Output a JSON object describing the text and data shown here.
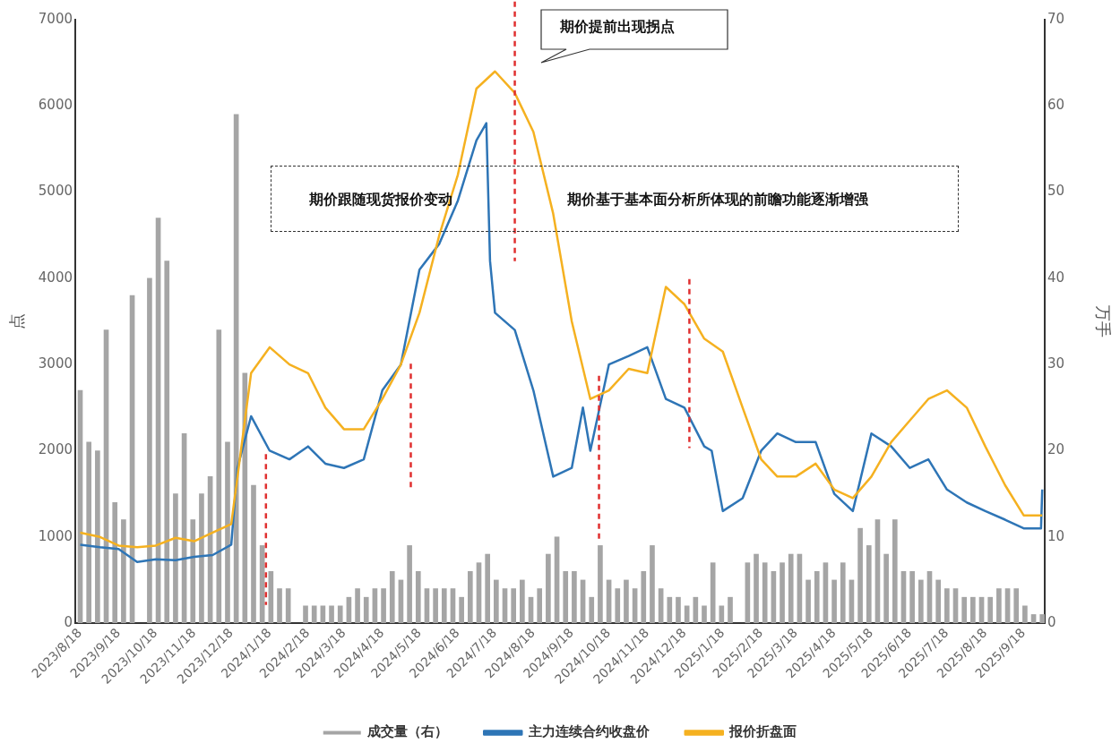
{
  "chart_data": {
    "type": "line",
    "ylabel": "点",
    "y2label": "万手",
    "legend": "bottom",
    "grid": false,
    "marker": "none",
    "line_style": "solid",
    "xlim": [
      "2023-08-14",
      "2025-10-05"
    ],
    "xticks": [
      {
        "value": "2023-08-18",
        "label": "2023/8/18"
      },
      {
        "value": "2023-09-18",
        "label": "2023/9/18"
      },
      {
        "value": "2023-10-18",
        "label": "2023/10/18"
      },
      {
        "value": "2023-11-18",
        "label": "2023/11/18"
      },
      {
        "value": "2023-12-18",
        "label": "2023/12/18"
      },
      {
        "value": "2024-01-18",
        "label": "2024/1/18"
      },
      {
        "value": "2024-02-18",
        "label": "2024/2/18"
      },
      {
        "value": "2024-03-18",
        "label": "2024/3/18"
      },
      {
        "value": "2024-04-18",
        "label": "2024/4/18"
      },
      {
        "value": "2024-05-18",
        "label": "2024/5/18"
      },
      {
        "value": "2024-06-18",
        "label": "2024/6/18"
      },
      {
        "value": "2024-07-18",
        "label": "2024/7/18"
      },
      {
        "value": "2024-08-18",
        "label": "2024/8/18"
      },
      {
        "value": "2024-09-18",
        "label": "2024/9/18"
      },
      {
        "value": "2024-10-18",
        "label": "2024/10/18"
      },
      {
        "value": "2024-11-18",
        "label": "2024/11/18"
      },
      {
        "value": "2024-12-18",
        "label": "2024/12/18"
      },
      {
        "value": "2025-01-18",
        "label": "2025/1/18"
      },
      {
        "value": "2025-02-18",
        "label": "2025/2/18"
      },
      {
        "value": "2025-03-18",
        "label": "2025/3/18"
      },
      {
        "value": "2025-04-18",
        "label": "2025/4/18"
      },
      {
        "value": "2025-05-18",
        "label": "2025/5/18"
      },
      {
        "value": "2025-06-18",
        "label": "2025/6/18"
      },
      {
        "value": "2025-07-18",
        "label": "2025/7/18"
      },
      {
        "value": "2025-08-18",
        "label": "2025/8/18"
      },
      {
        "value": "2025-09-18",
        "label": "2025/9/18"
      }
    ],
    "ylim": [
      0,
      7000
    ],
    "yticks": [
      0,
      1000,
      2000,
      3000,
      4000,
      5000,
      6000,
      7000
    ],
    "y2lim": [
      0,
      70
    ],
    "y2ticks": [
      0,
      10,
      20,
      30,
      40,
      50,
      60,
      70
    ],
    "series": [
      {
        "name": "成交量（右）",
        "type": "bar",
        "axis": "y2",
        "color": "#a5a5a5",
        "x": [
          "2023-08-18",
          "2023-08-25",
          "2023-09-01",
          "2023-09-08",
          "2023-09-15",
          "2023-09-22",
          "2023-09-29",
          "2023-10-06",
          "2023-10-13",
          "2023-10-20",
          "2023-10-27",
          "2023-11-03",
          "2023-11-10",
          "2023-11-17",
          "2023-11-24",
          "2023-12-01",
          "2023-12-08",
          "2023-12-15",
          "2023-12-22",
          "2023-12-29",
          "2024-01-05",
          "2024-01-12",
          "2024-01-19",
          "2024-01-26",
          "2024-02-02",
          "2024-02-09",
          "2024-02-16",
          "2024-02-23",
          "2024-03-01",
          "2024-03-08",
          "2024-03-15",
          "2024-03-22",
          "2024-03-29",
          "2024-04-05",
          "2024-04-12",
          "2024-04-19",
          "2024-04-26",
          "2024-05-03",
          "2024-05-10",
          "2024-05-17",
          "2024-05-24",
          "2024-05-31",
          "2024-06-07",
          "2024-06-14",
          "2024-06-21",
          "2024-06-28",
          "2024-07-05",
          "2024-07-12",
          "2024-07-19",
          "2024-07-26",
          "2024-08-02",
          "2024-08-09",
          "2024-08-16",
          "2024-08-23",
          "2024-08-30",
          "2024-09-06",
          "2024-09-13",
          "2024-09-20",
          "2024-09-27",
          "2024-10-04",
          "2024-10-11",
          "2024-10-18",
          "2024-10-25",
          "2024-11-01",
          "2024-11-08",
          "2024-11-15",
          "2024-11-22",
          "2024-11-29",
          "2024-12-06",
          "2024-12-13",
          "2024-12-20",
          "2024-12-27",
          "2025-01-03",
          "2025-01-10",
          "2025-01-17",
          "2025-01-24",
          "2025-01-31",
          "2025-02-07",
          "2025-02-14",
          "2025-02-21",
          "2025-02-28",
          "2025-03-07",
          "2025-03-14",
          "2025-03-21",
          "2025-03-28",
          "2025-04-04",
          "2025-04-11",
          "2025-04-18",
          "2025-04-25",
          "2025-05-02",
          "2025-05-09",
          "2025-05-16",
          "2025-05-23",
          "2025-05-30",
          "2025-06-06",
          "2025-06-13",
          "2025-06-20",
          "2025-06-27",
          "2025-07-04",
          "2025-07-11",
          "2025-07-18",
          "2025-07-25",
          "2025-08-01",
          "2025-08-08",
          "2025-08-15",
          "2025-08-22",
          "2025-08-29",
          "2025-09-05",
          "2025-09-12",
          "2025-09-19",
          "2025-09-26",
          "2025-10-03"
        ],
        "values": [
          27,
          21,
          20,
          34,
          14,
          12,
          38,
          null,
          40,
          47,
          42,
          15,
          22,
          12,
          15,
          17,
          34,
          21,
          59,
          29,
          16,
          9,
          6,
          4,
          4,
          null,
          2,
          2,
          2,
          2,
          2,
          3,
          4,
          3,
          4,
          4,
          6,
          5,
          9,
          6,
          4,
          4,
          4,
          4,
          3,
          6,
          7,
          8,
          5,
          4,
          4,
          5,
          3,
          4,
          8,
          10,
          6,
          6,
          5,
          3,
          9,
          5,
          4,
          5,
          4,
          6,
          9,
          4,
          3,
          3,
          2,
          3,
          2,
          7,
          2,
          3,
          null,
          7,
          8,
          7,
          6,
          7,
          8,
          8,
          5,
          6,
          7,
          5,
          7,
          5,
          11,
          9,
          12,
          8,
          12,
          6,
          6,
          5,
          6,
          5,
          4,
          4,
          3,
          3,
          3,
          3,
          4,
          4,
          4,
          2,
          1,
          1
        ]
      },
      {
        "name": "主力连续合约收盘价",
        "color": "#2e75b6",
        "x": [
          "2023-08-18",
          "2023-09-03",
          "2023-09-18",
          "2023-10-03",
          "2023-10-18",
          "2023-11-03",
          "2023-11-18",
          "2023-12-03",
          "2023-12-18",
          "2023-12-23",
          "2024-01-03",
          "2024-01-18",
          "2024-02-03",
          "2024-02-18",
          "2024-03-03",
          "2024-03-18",
          "2024-04-03",
          "2024-04-18",
          "2024-05-03",
          "2024-05-18",
          "2024-06-03",
          "2024-06-18",
          "2024-07-03",
          "2024-07-11",
          "2024-07-14",
          "2024-07-18",
          "2024-08-03",
          "2024-08-18",
          "2024-09-03",
          "2024-09-18",
          "2024-09-27",
          "2024-10-03",
          "2024-10-18",
          "2024-11-03",
          "2024-11-18",
          "2024-12-03",
          "2024-12-18",
          "2025-01-03",
          "2025-01-09",
          "2025-01-18",
          "2025-02-03",
          "2025-02-18",
          "2025-03-03",
          "2025-03-18",
          "2025-04-03",
          "2025-04-18",
          "2025-05-03",
          "2025-05-18",
          "2025-06-03",
          "2025-06-18",
          "2025-07-03",
          "2025-07-18",
          "2025-08-03",
          "2025-08-18",
          "2025-09-03",
          "2025-09-18",
          "2025-10-02",
          "2025-10-03"
        ],
        "values": [
          910,
          880,
          860,
          710,
          740,
          730,
          770,
          790,
          910,
          1800,
          2400,
          2000,
          1900,
          2050,
          1850,
          1800,
          1900,
          2700,
          3000,
          4100,
          4400,
          4900,
          5600,
          5800,
          4200,
          3600,
          3400,
          2700,
          1700,
          1800,
          2500,
          2000,
          3000,
          3100,
          3200,
          2600,
          2500,
          2050,
          2000,
          1300,
          1450,
          2000,
          2200,
          2100,
          2100,
          1500,
          1300,
          2200,
          2050,
          1800,
          1900,
          1550,
          1400,
          1300,
          1200,
          1100,
          1100,
          1550
        ]
      },
      {
        "name": "报价折盘面",
        "color": "#f5b120",
        "x": [
          "2023-08-18",
          "2023-09-03",
          "2023-09-18",
          "2023-10-03",
          "2023-10-18",
          "2023-11-03",
          "2023-11-18",
          "2023-12-03",
          "2023-12-18",
          "2024-01-03",
          "2024-01-18",
          "2024-02-03",
          "2024-02-18",
          "2024-03-03",
          "2024-03-18",
          "2024-04-03",
          "2024-04-18",
          "2024-05-03",
          "2024-05-18",
          "2024-06-03",
          "2024-06-18",
          "2024-07-03",
          "2024-07-18",
          "2024-08-03",
          "2024-08-18",
          "2024-09-03",
          "2024-09-18",
          "2024-10-03",
          "2024-10-18",
          "2024-11-03",
          "2024-11-18",
          "2024-12-03",
          "2024-12-18",
          "2025-01-03",
          "2025-01-18",
          "2025-02-03",
          "2025-02-18",
          "2025-03-03",
          "2025-03-18",
          "2025-04-03",
          "2025-04-18",
          "2025-05-03",
          "2025-05-18",
          "2025-06-03",
          "2025-06-18",
          "2025-07-03",
          "2025-07-18",
          "2025-08-03",
          "2025-08-18",
          "2025-09-03",
          "2025-09-18",
          "2025-10-03"
        ],
        "values": [
          1050,
          1000,
          900,
          880,
          900,
          990,
          950,
          1050,
          1150,
          2900,
          3200,
          3000,
          2900,
          2500,
          2250,
          2250,
          2600,
          3000,
          3600,
          4500,
          5200,
          6200,
          6400,
          6150,
          5700,
          4750,
          3500,
          2600,
          2700,
          2950,
          2900,
          3900,
          3700,
          3300,
          3150,
          2500,
          1900,
          1700,
          1700,
          1850,
          1550,
          1450,
          1700,
          2100,
          2350,
          2600,
          2700,
          2500,
          2050,
          1600,
          1250,
          1250
        ]
      }
    ],
    "ref_lines": [
      {
        "axis": "x",
        "value": "2024-01-15",
        "color": "#e03030",
        "line_style": "dashed"
      },
      {
        "axis": "x",
        "value": "2024-05-11",
        "color": "#e03030",
        "line_style": "dashed"
      },
      {
        "axis": "x",
        "value": "2024-08-03",
        "color": "#e03030",
        "line_style": "dashed"
      },
      {
        "axis": "x",
        "value": "2024-10-10",
        "color": "#e03030",
        "line_style": "dashed"
      },
      {
        "axis": "x",
        "value": "2024-12-22",
        "color": "#e03030",
        "line_style": "dashed"
      }
    ],
    "annotations": [
      "期价提前出现拐点",
      "期价跟随现货报价变动",
      "期价基于基本面分析所体现的前瞻功能逐渐增强"
    ]
  }
}
